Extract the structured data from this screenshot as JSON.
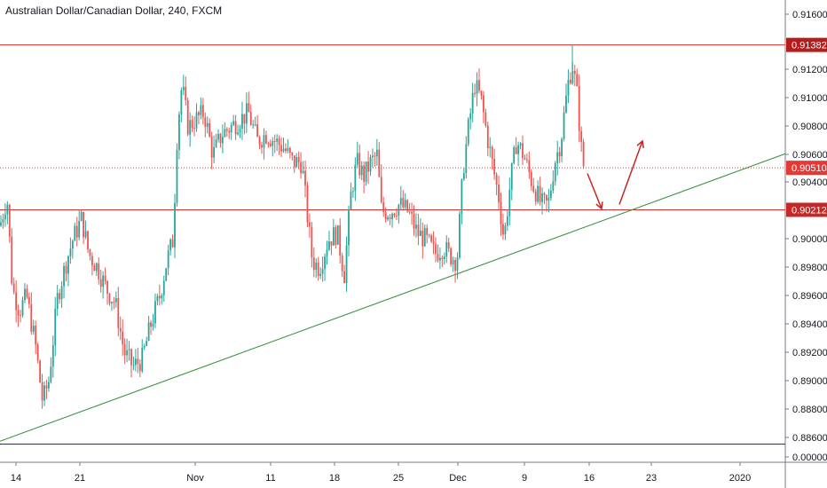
{
  "header": {
    "title": "Australian Dollar/Canadian Dollar, 240, FXCM"
  },
  "colors": {
    "up": "#26a69a",
    "down": "#ef5350",
    "level_line": "#d32f2f",
    "current_line": "#e53935",
    "trendline": "#388e3c",
    "arrow": "#c62828",
    "axis_text": "#131722"
  },
  "chart_data": {
    "type": "candlestick",
    "symbol": "AUDCAD",
    "title": "Australian Dollar/Canadian Dollar, 240, FXCM",
    "y_ticks": [
      "0.91600",
      "0.91200",
      "0.91000",
      "0.90800",
      "0.90600",
      "0.90400",
      "0.90000",
      "0.89800",
      "0.89600",
      "0.89400",
      "0.89200",
      "0.89000",
      "0.88800",
      "0.88600",
      "0.00000"
    ],
    "x_ticks": [
      "14",
      "21",
      "Nov",
      "11",
      "18",
      "25",
      "Dec",
      "9",
      "16",
      "23",
      "2020"
    ],
    "price_labels": [
      {
        "label": "0.91382",
        "value": 0.91382,
        "kind": "resistance"
      },
      {
        "label": "0.90510",
        "value": 0.9051,
        "kind": "current"
      },
      {
        "label": "0.90212",
        "value": 0.90212,
        "kind": "support"
      }
    ],
    "extra_level": 0.8855,
    "trendline": {
      "start": {
        "date": "Oct 10",
        "price": 0.8857
      },
      "end": {
        "date": "Dec 31",
        "price": 0.9061
      }
    },
    "forecast_arrows": [
      {
        "direction": "down",
        "from": 0.9047,
        "to": 0.9022
      },
      {
        "direction": "up",
        "from": 0.9025,
        "to": 0.907
      }
    ],
    "price_path": [
      [
        0,
        0.901
      ],
      [
        8,
        0.903
      ],
      [
        14,
        0.8965
      ],
      [
        22,
        0.895
      ],
      [
        30,
        0.896
      ],
      [
        40,
        0.8925
      ],
      [
        48,
        0.8885
      ],
      [
        55,
        0.89
      ],
      [
        65,
        0.896
      ],
      [
        75,
        0.8985
      ],
      [
        82,
        0.9
      ],
      [
        92,
        0.9015
      ],
      [
        100,
        0.899
      ],
      [
        110,
        0.898
      ],
      [
        120,
        0.8965
      ],
      [
        130,
        0.8955
      ],
      [
        140,
        0.892
      ],
      [
        150,
        0.891
      ],
      [
        160,
        0.8915
      ],
      [
        170,
        0.894
      ],
      [
        180,
        0.896
      ],
      [
        188,
        0.8985
      ],
      [
        195,
        0.9
      ],
      [
        200,
        0.908
      ],
      [
        205,
        0.911
      ],
      [
        212,
        0.908
      ],
      [
        220,
        0.9085
      ],
      [
        230,
        0.909
      ],
      [
        240,
        0.906
      ],
      [
        250,
        0.9075
      ],
      [
        260,
        0.908
      ],
      [
        270,
        0.9085
      ],
      [
        280,
        0.909
      ],
      [
        290,
        0.907
      ],
      [
        300,
        0.9075
      ],
      [
        310,
        0.907
      ],
      [
        320,
        0.9065
      ],
      [
        330,
        0.9055
      ],
      [
        340,
        0.9055
      ],
      [
        345,
        0.9025
      ],
      [
        352,
        0.8985
      ],
      [
        360,
        0.898
      ],
      [
        370,
        0.9
      ],
      [
        380,
        0.9005
      ],
      [
        388,
        0.8975
      ],
      [
        395,
        0.903
      ],
      [
        402,
        0.9055
      ],
      [
        410,
        0.9045
      ],
      [
        418,
        0.9055
      ],
      [
        425,
        0.906
      ],
      [
        430,
        0.902
      ],
      [
        440,
        0.902
      ],
      [
        450,
        0.9025
      ],
      [
        460,
        0.902
      ],
      [
        470,
        0.9005
      ],
      [
        480,
        0.9
      ],
      [
        490,
        0.899
      ],
      [
        500,
        0.8995
      ],
      [
        505,
        0.899
      ],
      [
        515,
        0.8985
      ],
      [
        522,
        0.905
      ],
      [
        528,
        0.908
      ],
      [
        535,
        0.911
      ],
      [
        542,
        0.91
      ],
      [
        550,
        0.907
      ],
      [
        556,
        0.905
      ],
      [
        562,
        0.903
      ],
      [
        568,
        0.9
      ],
      [
        575,
        0.904
      ],
      [
        582,
        0.907
      ],
      [
        590,
        0.906
      ],
      [
        600,
        0.904
      ],
      [
        610,
        0.9025
      ],
      [
        618,
        0.9025
      ],
      [
        625,
        0.9055
      ],
      [
        632,
        0.907
      ],
      [
        640,
        0.911
      ],
      [
        645,
        0.9125
      ],
      [
        650,
        0.9105
      ],
      [
        655,
        0.9065
      ],
      [
        658,
        0.9051
      ]
    ]
  }
}
